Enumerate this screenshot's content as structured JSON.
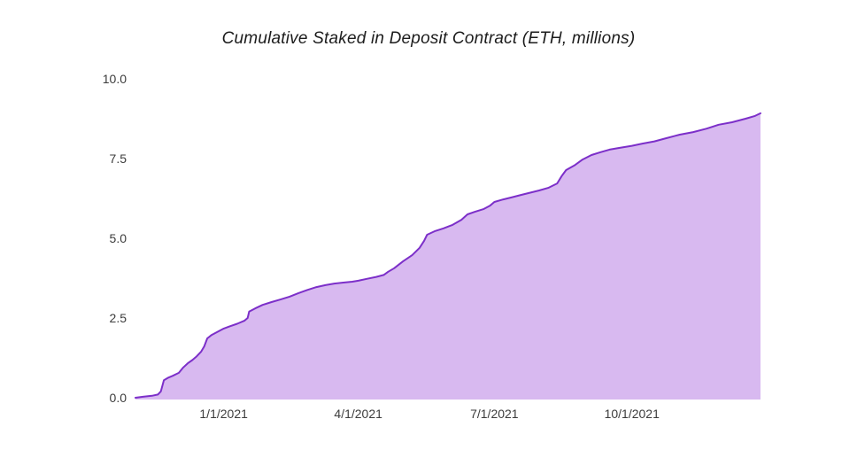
{
  "colors": {
    "background": "#ffffff",
    "line": "#7c2fc9",
    "fill": "#d8b9f0",
    "title_text": "#1c1c1c",
    "tick_text": "#3c3c3c"
  },
  "chart_data": {
    "type": "area",
    "title": "Cumulative Staked in Deposit Contract (ETH, millions)",
    "xlabel": "",
    "ylabel": "",
    "ylim": [
      0,
      10
    ],
    "grid": false,
    "legend": false,
    "y_ticks": [
      0.0,
      2.5,
      5.0,
      7.5,
      10.0
    ],
    "y_tick_labels": [
      "0.0",
      "2.5",
      "5.0",
      "7.5",
      "10.0"
    ],
    "x_tick_labels": [
      "1/1/2021",
      "4/1/2021",
      "7/1/2021",
      "10/1/2021"
    ],
    "series": [
      {
        "name": "Cumulative staked in deposit contract (ETH, millions)",
        "points": [
          [
            "11/3/2020",
            0.0
          ],
          [
            "11/8/2020",
            0.03
          ],
          [
            "11/14/2020",
            0.06
          ],
          [
            "11/18/2020",
            0.1
          ],
          [
            "11/20/2020",
            0.2
          ],
          [
            "11/22/2020",
            0.55
          ],
          [
            "11/25/2020",
            0.63
          ],
          [
            "11/28/2020",
            0.69
          ],
          [
            "12/2/2020",
            0.78
          ],
          [
            "12/5/2020",
            0.95
          ],
          [
            "12/8/2020",
            1.08
          ],
          [
            "12/11/2020",
            1.18
          ],
          [
            "12/14/2020",
            1.3
          ],
          [
            "12/17/2020",
            1.45
          ],
          [
            "12/19/2020",
            1.61
          ],
          [
            "12/21/2020",
            1.86
          ],
          [
            "12/24/2020",
            1.97
          ],
          [
            "12/28/2020",
            2.07
          ],
          [
            "1/1/2021",
            2.17
          ],
          [
            "1/5/2021",
            2.24
          ],
          [
            "1/10/2021",
            2.32
          ],
          [
            "1/15/2021",
            2.42
          ],
          [
            "1/17/2021",
            2.5
          ],
          [
            "1/18/2021",
            2.7
          ],
          [
            "1/22/2021",
            2.8
          ],
          [
            "1/27/2021",
            2.91
          ],
          [
            "2/2/2021",
            3.0
          ],
          [
            "2/8/2021",
            3.08
          ],
          [
            "2/14/2021",
            3.17
          ],
          [
            "2/20/2021",
            3.28
          ],
          [
            "2/26/2021",
            3.38
          ],
          [
            "3/4/2021",
            3.47
          ],
          [
            "3/10/2021",
            3.53
          ],
          [
            "3/16/2021",
            3.58
          ],
          [
            "3/22/2021",
            3.61
          ],
          [
            "3/28/2021",
            3.64
          ],
          [
            "4/1/2021",
            3.67
          ],
          [
            "4/7/2021",
            3.73
          ],
          [
            "4/13/2021",
            3.79
          ],
          [
            "4/18/2021",
            3.85
          ],
          [
            "4/21/2021",
            3.95
          ],
          [
            "4/25/2021",
            4.06
          ],
          [
            "5/1/2021",
            4.28
          ],
          [
            "5/7/2021",
            4.47
          ],
          [
            "5/12/2021",
            4.7
          ],
          [
            "5/15/2021",
            4.92
          ],
          [
            "5/17/2021",
            5.11
          ],
          [
            "5/22/2021",
            5.22
          ],
          [
            "5/28/2021",
            5.31
          ],
          [
            "6/3/2021",
            5.42
          ],
          [
            "6/9/2021",
            5.58
          ],
          [
            "6/13/2021",
            5.75
          ],
          [
            "6/18/2021",
            5.83
          ],
          [
            "6/24/2021",
            5.92
          ],
          [
            "6/28/2021",
            6.02
          ],
          [
            "7/1/2021",
            6.14
          ],
          [
            "7/7/2021",
            6.22
          ],
          [
            "7/13/2021",
            6.29
          ],
          [
            "7/19/2021",
            6.36
          ],
          [
            "7/25/2021",
            6.43
          ],
          [
            "7/31/2021",
            6.5
          ],
          [
            "8/6/2021",
            6.58
          ],
          [
            "8/12/2021",
            6.72
          ],
          [
            "8/15/2021",
            6.95
          ],
          [
            "8/18/2021",
            7.14
          ],
          [
            "8/24/2021",
            7.3
          ],
          [
            "8/29/2021",
            7.47
          ],
          [
            "9/4/2021",
            7.61
          ],
          [
            "9/10/2021",
            7.7
          ],
          [
            "9/16/2021",
            7.78
          ],
          [
            "9/22/2021",
            7.83
          ],
          [
            "10/1/2021",
            7.9
          ],
          [
            "10/8/2021",
            7.97
          ],
          [
            "10/16/2021",
            8.04
          ],
          [
            "10/24/2021",
            8.14
          ],
          [
            "11/2/2021",
            8.25
          ],
          [
            "11/11/2021",
            8.33
          ],
          [
            "11/20/2021",
            8.44
          ],
          [
            "11/28/2021",
            8.56
          ],
          [
            "12/7/2021",
            8.64
          ],
          [
            "12/16/2021",
            8.75
          ],
          [
            "12/22/2021",
            8.83
          ],
          [
            "12/26/2021",
            8.92
          ]
        ]
      }
    ]
  }
}
